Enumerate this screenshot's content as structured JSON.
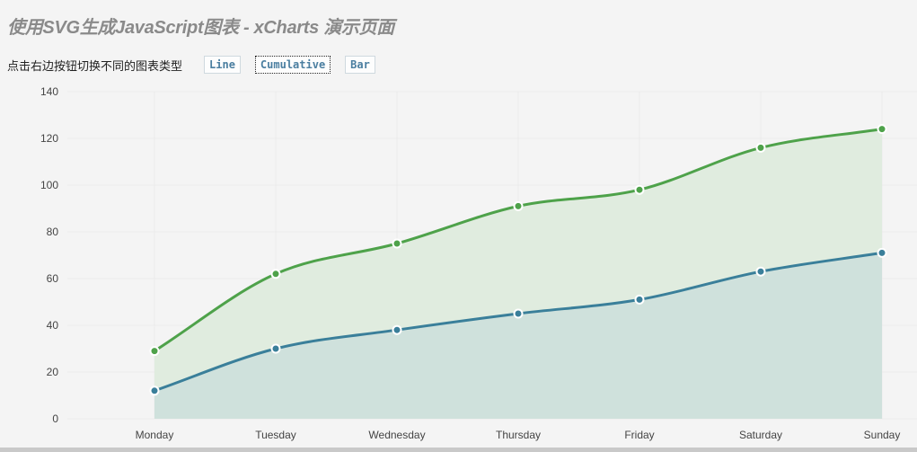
{
  "page": {
    "title": "使用SVG生成JavaScript图表 - xCharts 演示页面"
  },
  "toolbar": {
    "label": "点击右边按钮切换不同的图表类型",
    "buttons": [
      {
        "label": "Line",
        "active": false
      },
      {
        "label": "Cumulative",
        "active": true
      },
      {
        "label": "Bar",
        "active": false
      }
    ]
  },
  "chart_data": {
    "type": "area",
    "stacked": true,
    "title": "",
    "xlabel": "",
    "ylabel": "",
    "categories": [
      "Monday",
      "Tuesday",
      "Wednesday",
      "Thursday",
      "Friday",
      "Saturday",
      "Sunday"
    ],
    "ylim": [
      0,
      140
    ],
    "yticks": [
      0,
      20,
      40,
      60,
      80,
      100,
      120,
      140
    ],
    "grid": true,
    "legend": "none",
    "series": [
      {
        "values": [
          12,
          30,
          38,
          45,
          51,
          63,
          71
        ],
        "color": "#3a7f9a",
        "fill": "#cfe1dc"
      },
      {
        "values": [
          17,
          32,
          37,
          46,
          47,
          53,
          53
        ],
        "color": "#4ea24a",
        "fill": "#e0ecdf"
      }
    ]
  }
}
